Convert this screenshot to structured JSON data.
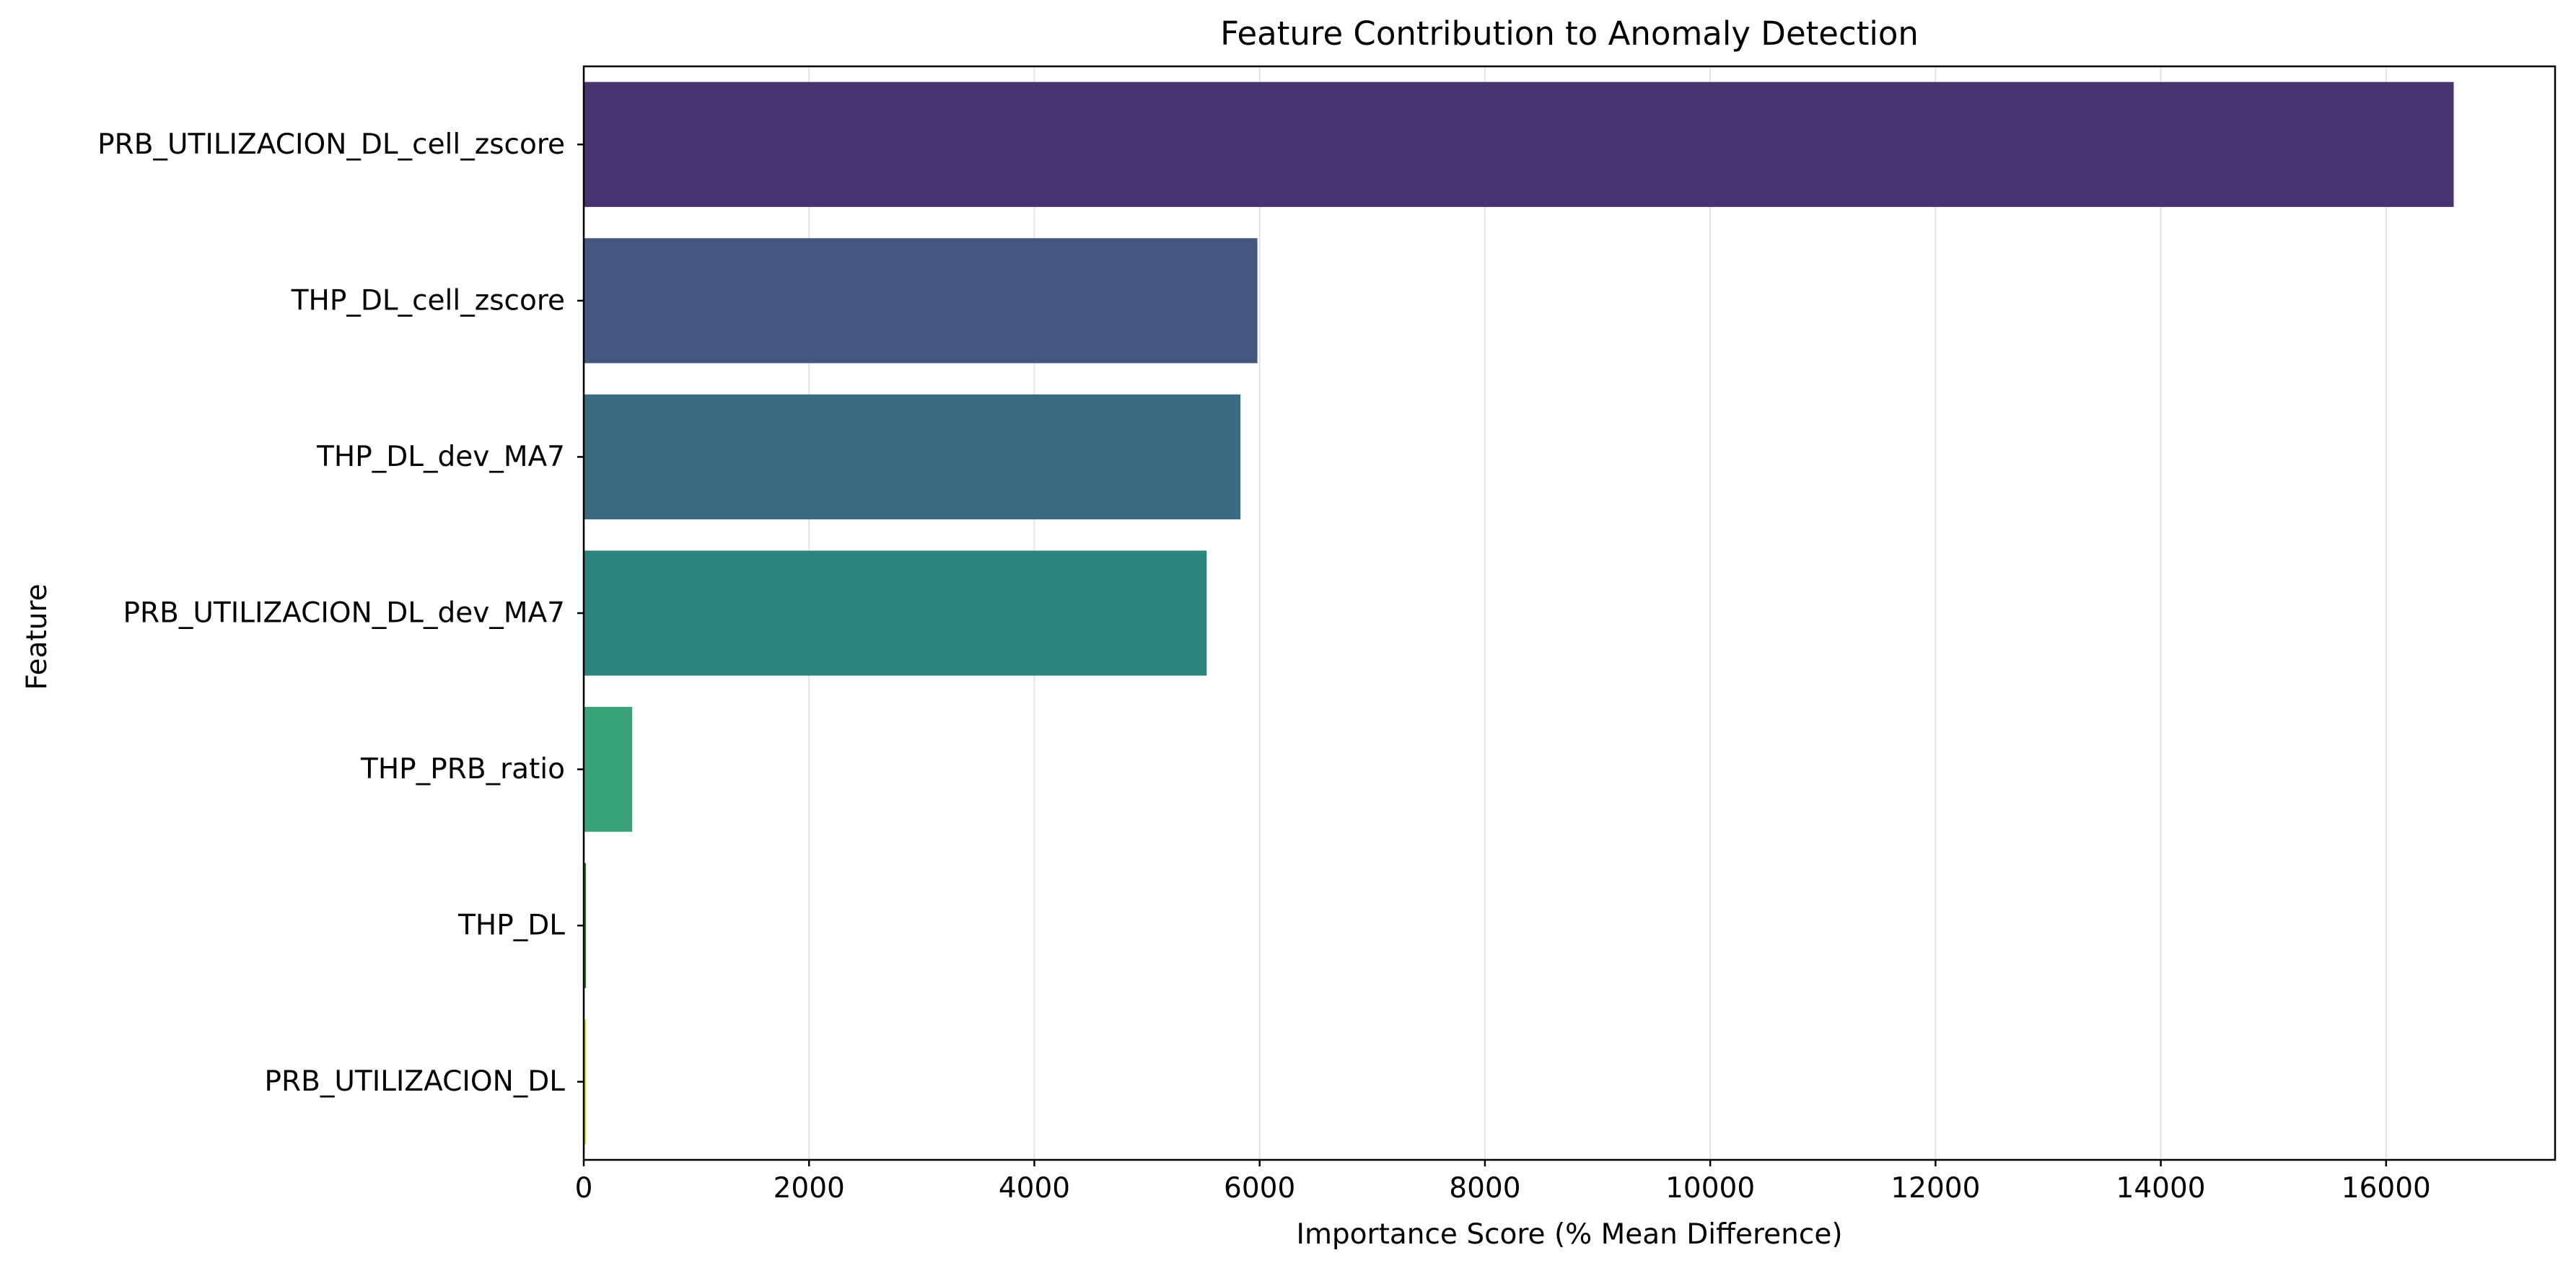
{
  "chart_data": {
    "type": "bar",
    "orientation": "horizontal",
    "title": "Feature Contribution to Anomaly Detection",
    "xlabel": "Importance Score (% Mean Difference)",
    "ylabel": "Feature",
    "xlim": [
      0,
      17500
    ],
    "xticks": [
      0,
      2000,
      4000,
      6000,
      8000,
      10000,
      12000,
      14000,
      16000
    ],
    "grid": "x",
    "categories": [
      "PRB_UTILIZACION_DL_cell_zscore",
      "THP_DL_cell_zscore",
      "THP_DL_dev_MA7",
      "PRB_UTILIZACION_DL_dev_MA7",
      "THP_PRB_ratio",
      "THP_DL",
      "PRB_UTILIZACION_DL"
    ],
    "values": [
      16600,
      5980,
      5830,
      5530,
      430,
      20,
      20
    ],
    "colors": [
      "#48326f",
      "#45577f",
      "#3a6b83",
      "#2d837d",
      "#3ba37a",
      "#2a7e1e",
      "#ddd51b"
    ]
  }
}
